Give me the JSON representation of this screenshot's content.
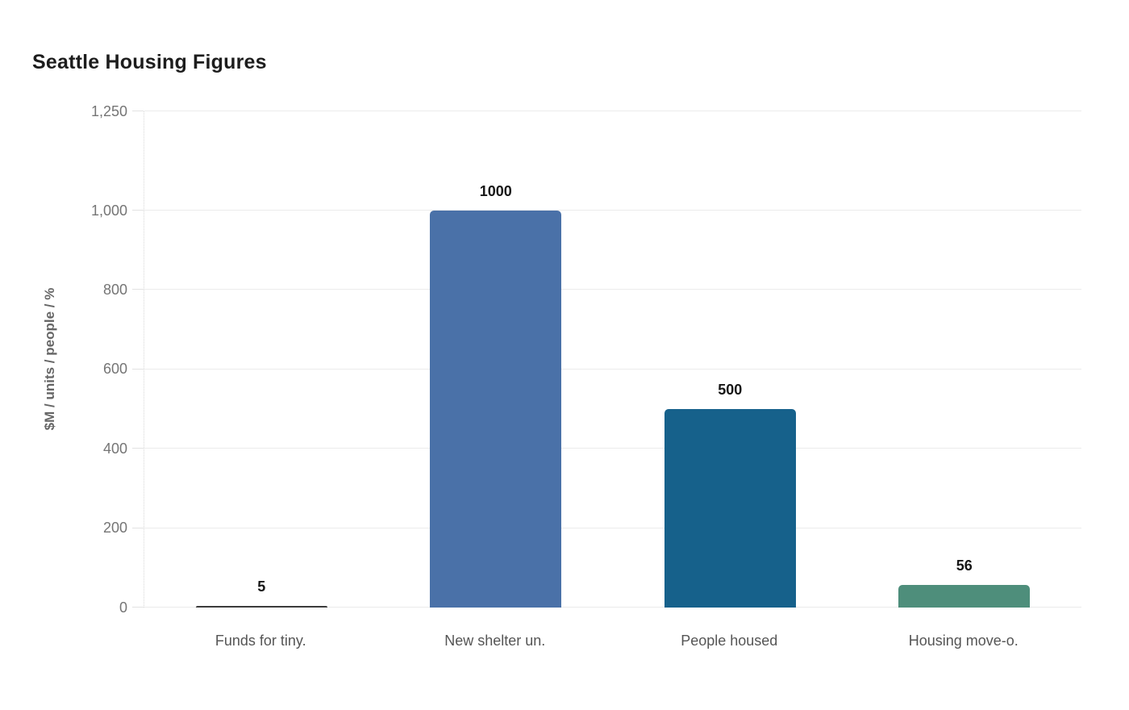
{
  "chart_data": {
    "type": "bar",
    "title": "Seattle Housing Figures",
    "xlabel": "",
    "ylabel": "$M / units / people / %",
    "categories": [
      "Funds for tiny.",
      "New shelter un.",
      "People housed",
      "Housing move-o."
    ],
    "values": [
      5,
      1000,
      500,
      56
    ],
    "value_labels": [
      "5",
      "1000",
      "500",
      "56"
    ],
    "bar_colors": [
      "#3b3b3b",
      "#4a71a8",
      "#16618b",
      "#4e8e7b"
    ],
    "ylim": [
      0,
      1250
    ],
    "yticks": [
      0,
      200,
      400,
      600,
      800,
      1000,
      1250
    ],
    "ytick_labels": [
      "0",
      "200",
      "400",
      "600",
      "800",
      "1,000",
      "1,250"
    ],
    "grid": "horizontal",
    "legend": "none"
  },
  "colors": {
    "background": "#ffffff",
    "gridline": "#ebebeb",
    "tick_label": "#757575",
    "axis_title": "#666666",
    "category_label": "#555555",
    "title": "#1d1d1d",
    "value_label": "#161616"
  }
}
